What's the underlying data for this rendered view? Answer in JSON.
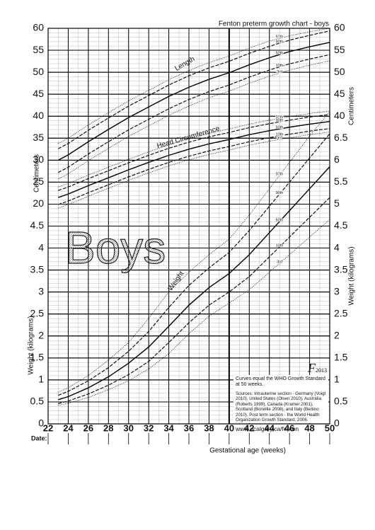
{
  "chart_data": {
    "type": "line",
    "title": "Fenton preterm growth chart - boys",
    "watermark": "Boys",
    "x_label": "Gestational age (weeks)",
    "date_label": "Date:",
    "y_label_cm": "Centimeters",
    "y_label_kg": "Weight (kilograms)",
    "xlim": [
      22,
      50
    ],
    "xticks": [
      22,
      24,
      26,
      28,
      30,
      32,
      34,
      36,
      38,
      40,
      42,
      44,
      46,
      48,
      50
    ],
    "ylim": [
      0,
      9
    ],
    "yticks_left": [
      0,
      0.5,
      1,
      1.5,
      2,
      2.5,
      3,
      3.5,
      4,
      4.5
    ],
    "yticks_right": [
      0,
      0.5,
      1,
      1.5,
      2,
      2.5,
      3,
      3.5,
      4,
      4.5,
      5,
      5.5,
      6,
      6.5
    ],
    "y2lim": [
      -30,
      60
    ],
    "y2ticks_left": [
      20,
      25,
      30,
      35,
      40,
      45,
      50,
      55,
      60
    ],
    "y2ticks_right": [
      40,
      45,
      50,
      55,
      60
    ],
    "grid": true,
    "x": [
      23,
      24,
      26,
      28,
      30,
      32,
      34,
      36,
      38,
      40,
      42,
      44,
      46,
      48,
      50
    ],
    "groups": [
      {
        "label": "Length",
        "axis": "y2",
        "series": [
          {
            "name": "97th",
            "style": "dotted",
            "values": [
              33.8,
              35.0,
              38.0,
              40.8,
              43.5,
              45.9,
              48.3,
              50.4,
              52.2,
              53.7,
              55.5,
              57.1,
              58.3,
              59.2,
              60.0
            ]
          },
          {
            "name": "90th",
            "style": "dashed",
            "values": [
              32.6,
              33.8,
              36.8,
              39.6,
              42.3,
              44.7,
              47.1,
              49.2,
              51.0,
              52.5,
              54.3,
              55.9,
              57.3,
              58.4,
              59.4
            ]
          },
          {
            "name": "50th",
            "style": "solid",
            "values": [
              30,
              31.2,
              34.2,
              37,
              39.7,
              42.1,
              44.5,
              46.6,
              48.4,
              49.9,
              51.7,
              53.3,
              54.7,
              55.8,
              56.8
            ]
          },
          {
            "name": "10th",
            "style": "dashed",
            "values": [
              27.2,
              28.4,
              31.4,
              34.2,
              36.9,
              39.3,
              41.7,
              43.8,
              45.6,
              47.1,
              48.9,
              50.5,
              51.9,
              53.0,
              54.0
            ]
          },
          {
            "name": "3rd",
            "style": "dotted",
            "values": [
              25.7,
              26.9,
              29.9,
              32.7,
              35.4,
              37.8,
              40.2,
              42.3,
              44.2,
              45.7,
              47.5,
              49.1,
              50.5,
              51.6,
              52.6
            ]
          }
        ]
      },
      {
        "label": "Head Circumference",
        "axis": "y2",
        "series": [
          {
            "name": "97th",
            "style": "dotted",
            "values": [
              23.9,
              24.7,
              26.6,
              28.4,
              30.2,
              31.9,
              33.5,
              34.9,
              36.1,
              37.1,
              38.2,
              39.1,
              39.9,
              40.6,
              41.2
            ]
          },
          {
            "name": "90th",
            "style": "dashed",
            "values": [
              23.1,
              23.9,
              25.8,
              27.6,
              29.4,
              31.1,
              32.7,
              34.1,
              35.3,
              36.3,
              37.4,
              38.3,
              39.1,
              39.8,
              40.4
            ]
          },
          {
            "name": "50th",
            "style": "solid",
            "values": [
              21.5,
              22.3,
              24.2,
              26.0,
              27.8,
              29.5,
              31.1,
              32.5,
              33.7,
              34.7,
              35.8,
              36.7,
              37.5,
              38.2,
              38.8
            ]
          },
          {
            "name": "10th",
            "style": "dashed",
            "values": [
              19.9,
              20.7,
              22.6,
              24.4,
              26.2,
              27.9,
              29.5,
              30.9,
              32.1,
              33.1,
              34.2,
              35.1,
              35.9,
              36.6,
              37.2
            ]
          },
          {
            "name": "3rd",
            "style": "dotted",
            "values": [
              19.1,
              19.9,
              21.8,
              23.6,
              25.4,
              27.1,
              28.7,
              30.1,
              31.3,
              32.3,
              33.4,
              34.3,
              35.1,
              35.8,
              36.4
            ]
          }
        ]
      },
      {
        "label": "Weight",
        "axis": "y",
        "series": [
          {
            "name": "97th",
            "style": "dotted",
            "values": [
              0.72,
              0.82,
              1.1,
              1.45,
              1.85,
              2.4,
              3.0,
              3.45,
              3.85,
              4.2,
              4.75,
              5.35,
              5.95,
              6.55,
              7.1
            ]
          },
          {
            "name": "90th",
            "style": "dashed",
            "values": [
              0.65,
              0.74,
              0.98,
              1.28,
              1.65,
              2.1,
              2.65,
              3.15,
              3.55,
              3.9,
              4.4,
              4.95,
              5.5,
              6.05,
              6.6
            ]
          },
          {
            "name": "50th",
            "style": "solid",
            "values": [
              0.55,
              0.62,
              0.82,
              1.07,
              1.38,
              1.75,
              2.22,
              2.7,
              3.1,
              3.42,
              3.85,
              4.35,
              4.85,
              5.35,
              5.85
            ]
          },
          {
            "name": "10th",
            "style": "dashed",
            "values": [
              0.46,
              0.52,
              0.68,
              0.88,
              1.12,
              1.42,
              1.85,
              2.3,
              2.7,
              3.0,
              3.35,
              3.8,
              4.25,
              4.7,
              5.15
            ]
          },
          {
            "name": "3rd",
            "style": "dotted",
            "values": [
              0.42,
              0.47,
              0.6,
              0.78,
              0.98,
              1.25,
              1.6,
              2.05,
              2.45,
              2.75,
              3.05,
              3.45,
              3.85,
              4.25,
              4.65
            ]
          }
        ]
      }
    ],
    "info": {
      "logo": "F",
      "year": "2013",
      "note": "Curves equal the WHO Growth Standard at 50 weeks.",
      "sources": "Sources: Intrauterine section - Germany (Voigt 2010), United States (Olsen 2010), Australia (Roberts 1999), Canada (Kramer 2001), Scotland (Bonellie 2008), and Italy (Bertino 2010). Post term section - the World Health Organization Growth Standard, 2006.",
      "url": "www.ucalgary.ca/fenton"
    }
  }
}
